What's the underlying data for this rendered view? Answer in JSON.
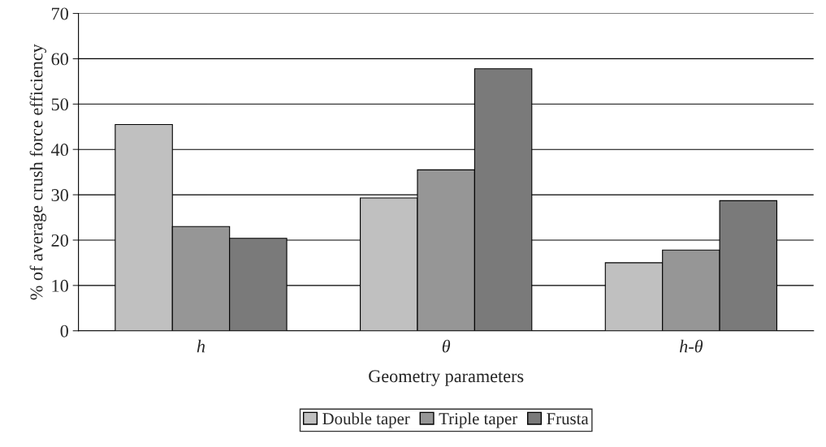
{
  "chart_data": {
    "type": "bar",
    "xlabel": "Geometry parameters",
    "ylabel": "% of average crush force efficiency",
    "categories": [
      "h",
      "θ",
      "h-θ"
    ],
    "series": [
      {
        "name": "Double taper",
        "color": "#c0c0c0",
        "values": [
          45.5,
          29.3,
          15
        ]
      },
      {
        "name": "Triple taper",
        "color": "#969696",
        "values": [
          23,
          35.5,
          17.8
        ]
      },
      {
        "name": "Frusta",
        "color": "#7a7a7a",
        "values": [
          20.4,
          57.8,
          28.7
        ]
      }
    ],
    "ylim": [
      0,
      70
    ],
    "yticks": [
      0,
      10,
      20,
      30,
      40,
      50,
      60,
      70
    ],
    "grid": "y",
    "legend": "bottom"
  }
}
